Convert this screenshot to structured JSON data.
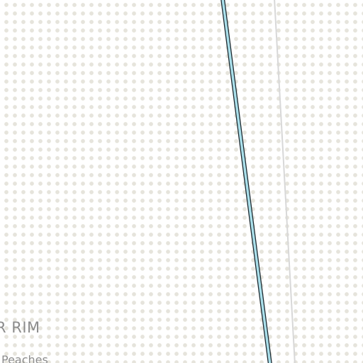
{
  "map": {
    "labels": {
      "area_label": "R RIM",
      "place_label": "Peaches"
    },
    "colors": {
      "background": "#ffffff",
      "dot_pattern": "#e6e4dc",
      "water_fill": "#aadfea",
      "water_outline": "#1e2a30",
      "boundary_line": "#d8d8d8",
      "label_text": "#8c8c8c"
    }
  }
}
